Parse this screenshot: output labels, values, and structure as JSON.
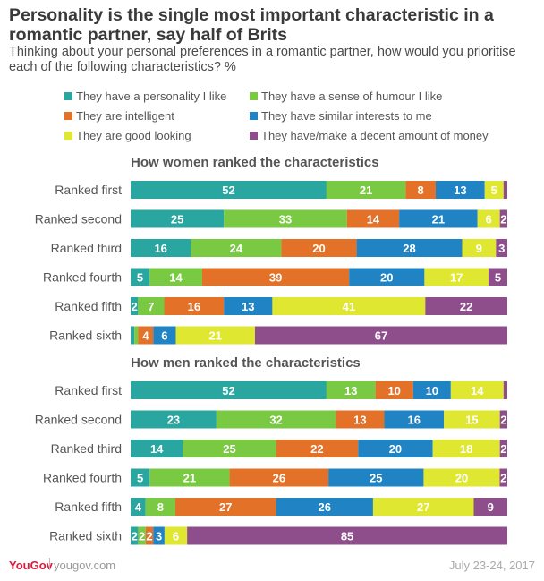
{
  "title": "Personality is the single most important characteristic in a romantic partner, say half of Brits",
  "subtitle": "Thinking about your personal preferences in a romantic partner, how would you prioritise each of the following characteristics? %",
  "legend": [
    {
      "label": "They have a personality I like",
      "color": "#2aa6a0"
    },
    {
      "label": "They have a sense of humour I like",
      "color": "#7ac943"
    },
    {
      "label": "They are intelligent",
      "color": "#e37127"
    },
    {
      "label": "They have similar interests to me",
      "color": "#1f83c4"
    },
    {
      "label": "They are good looking",
      "color": "#dfe731"
    },
    {
      "label": "They have/make a decent amount of money",
      "color": "#8e4e8c"
    }
  ],
  "chart_data": [
    {
      "type": "bar",
      "orientation": "horizontal",
      "stacked": true,
      "title": "How women ranked the characteristics",
      "categories": [
        "Ranked first",
        "Ranked second",
        "Ranked third",
        "Ranked fourth",
        "Ranked fifth",
        "Ranked sixth"
      ],
      "series": [
        {
          "name": "They have a personality I like",
          "values": [
            52,
            25,
            16,
            5,
            2,
            1
          ]
        },
        {
          "name": "They have a sense of humour I like",
          "values": [
            21,
            33,
            24,
            14,
            7,
            1
          ]
        },
        {
          "name": "They are intelligent",
          "values": [
            8,
            14,
            20,
            39,
            16,
            4
          ]
        },
        {
          "name": "They have similar interests to me",
          "values": [
            13,
            21,
            28,
            20,
            13,
            6
          ]
        },
        {
          "name": "They are good looking",
          "values": [
            5,
            6,
            9,
            17,
            41,
            21
          ]
        },
        {
          "name": "They have/make a decent amount of money",
          "values": [
            1,
            2,
            3,
            5,
            22,
            67
          ]
        }
      ],
      "show_label_min": 2
    },
    {
      "type": "bar",
      "orientation": "horizontal",
      "stacked": true,
      "title": "How men ranked the characteristics",
      "categories": [
        "Ranked first",
        "Ranked second",
        "Ranked third",
        "Ranked fourth",
        "Ranked fifth",
        "Ranked sixth"
      ],
      "series": [
        {
          "name": "They have a personality I like",
          "values": [
            52,
            23,
            14,
            5,
            4,
            2
          ]
        },
        {
          "name": "They have a sense of humour I like",
          "values": [
            13,
            32,
            25,
            21,
            8,
            2
          ]
        },
        {
          "name": "They are intelligent",
          "values": [
            10,
            13,
            22,
            26,
            27,
            2
          ]
        },
        {
          "name": "They have similar interests to me",
          "values": [
            10,
            16,
            20,
            25,
            26,
            3
          ]
        },
        {
          "name": "They are good looking",
          "values": [
            14,
            15,
            18,
            20,
            27,
            6
          ]
        },
        {
          "name": "They have/make a decent amount of money",
          "values": [
            1,
            2,
            2,
            2,
            9,
            85
          ]
        }
      ],
      "show_label_min": 2
    }
  ],
  "footer": {
    "brand": "YouGov",
    "url": "yougov.com",
    "date": "July 23-24, 2017"
  }
}
